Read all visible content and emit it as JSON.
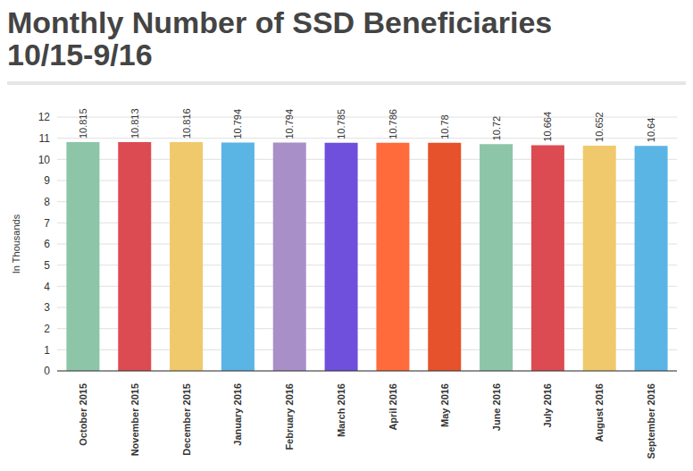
{
  "chart_data": {
    "type": "bar",
    "title": "Monthly Number of SSD Beneficiaries 10/15-9/16",
    "y_label": "In Thousands",
    "categories": [
      "October 2015",
      "November 2015",
      "December 2015",
      "January 2016",
      "February 2016",
      "March 2016",
      "April 2016",
      "May 2016",
      "June 2016",
      "July 2016",
      "August 2016",
      "September 2016"
    ],
    "values": [
      10.815,
      10.813,
      10.816,
      10.794,
      10.794,
      10.785,
      10.786,
      10.78,
      10.72,
      10.664,
      10.652,
      10.64
    ],
    "colors": [
      "#8cc5a7",
      "#dd4b52",
      "#f0c96c",
      "#5ab4e4",
      "#a98fc8",
      "#6f50dc",
      "#ff6b3b",
      "#e5522b",
      "#8cc5a7",
      "#dd4b52",
      "#f0c96c",
      "#5ab4e4"
    ],
    "ylim": [
      0,
      12
    ],
    "yticks": [
      0,
      1,
      2,
      3,
      4,
      5,
      6,
      7,
      8,
      9,
      10,
      11,
      12
    ],
    "grid": true,
    "data_labels": true
  }
}
